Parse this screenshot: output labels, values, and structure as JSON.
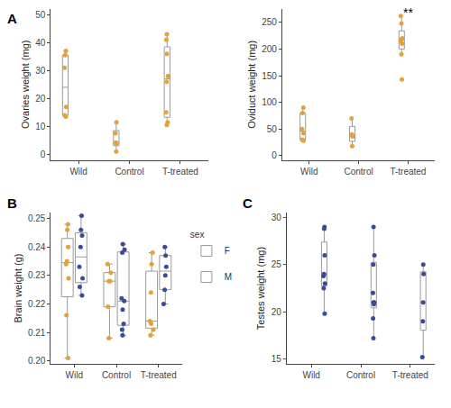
{
  "chart_data": [
    {
      "type": "box",
      "title": "A",
      "y_label": "Ovaries weight (mg)",
      "categories": [
        "Wild",
        "Control",
        "T-treated"
      ],
      "color": "#e3a13b",
      "values": [
        [
          37,
          35.5,
          31,
          17,
          14,
          13.5
        ],
        [
          11.5,
          7.5,
          4.2,
          3.8,
          1
        ],
        [
          43,
          41,
          36,
          28,
          26,
          15,
          11.5,
          10.5
        ]
      ],
      "ylim": [
        -2,
        52
      ],
      "yticks": [
        0,
        10,
        20,
        30,
        40,
        50
      ],
      "grid": false
    },
    {
      "type": "box",
      "y_label": "Oviduct weight (mg)",
      "categories": [
        "Wild",
        "Control",
        "T-treated"
      ],
      "color": "#e3a13b",
      "values": [
        [
          90,
          80,
          50,
          42,
          30,
          28
        ],
        [
          70,
          40,
          36,
          18
        ],
        [
          262,
          248,
          220,
          218,
          215,
          210,
          190,
          143
        ]
      ],
      "ylim": [
        -8,
        275
      ],
      "yticks": [
        0,
        50,
        100,
        150,
        200,
        250
      ],
      "grid": false,
      "annotations": [
        {
          "text": "**",
          "category": "T-treated",
          "y": 268
        }
      ]
    },
    {
      "type": "box",
      "title": "B",
      "y_label": "Brain weight (g)",
      "categories": [
        "Wild",
        "Control",
        "T-treated"
      ],
      "legend": "right",
      "legend_title": "sex",
      "series": [
        {
          "name": "F",
          "color": "#e3a13b",
          "values": [
            [
              0.248,
              0.246,
              0.24,
              0.235,
              0.234,
              0.229,
              0.216,
              0.201
            ],
            [
              0.234,
              0.231,
              0.228,
              0.228,
              0.219,
              0.208
            ],
            [
              0.238,
              0.234,
              0.224,
              0.214,
              0.213,
              0.211,
              0.209
            ]
          ]
        },
        {
          "name": "M",
          "color": "#3b4b9a",
          "values": [
            [
              0.251,
              0.246,
              0.244,
              0.24,
              0.233,
              0.229,
              0.226,
              0.223
            ],
            [
              0.241,
              0.239,
              0.238,
              0.222,
              0.221,
              0.218,
              0.213,
              0.211,
              0.209
            ],
            [
              0.24,
              0.237,
              0.233,
              0.23,
              0.225,
              0.22
            ]
          ]
        }
      ],
      "ylim": [
        0.199,
        0.252
      ],
      "yticks": [
        {
          "value": 0.2,
          "label": "0.20"
        },
        0.21,
        0.22,
        0.23,
        0.24,
        0.25
      ],
      "grid": false
    },
    {
      "type": "box",
      "title": "C",
      "y_label": "Testes weight (mg)",
      "categories": [
        "Wild",
        "Control",
        "T-treated"
      ],
      "color": "#3b4b9a",
      "values": [
        [
          29,
          28.8,
          26,
          24,
          23.8,
          23,
          22.5,
          19.8
        ],
        [
          29,
          26,
          25,
          22,
          21,
          21,
          20.8,
          19.3,
          17.2
        ],
        [
          25,
          24,
          21,
          19,
          15.2
        ]
      ],
      "ylim": [
        14.5,
        30.5
      ],
      "yticks": [
        15,
        20,
        25,
        30
      ],
      "grid": false
    }
  ]
}
